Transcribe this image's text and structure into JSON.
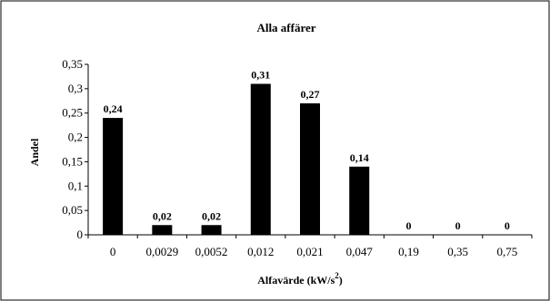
{
  "chart_data": {
    "type": "bar",
    "title": "Alla affärer",
    "xlabel": "Alfavärde (kW/s",
    "xlabel_superscript": "2",
    "xlabel_suffix": ")",
    "ylabel": "Andel",
    "ylim": [
      0,
      0.35
    ],
    "ytick_step": 0.05,
    "yticks": [
      "0",
      "0,05",
      "0,1",
      "0,15",
      "0,2",
      "0,25",
      "0,3",
      "0,35"
    ],
    "categories": [
      "0",
      "0,0029",
      "0,0052",
      "0,012",
      "0,021",
      "0,047",
      "0,19",
      "0,35",
      "0,75"
    ],
    "values": [
      0.24,
      0.02,
      0.02,
      0.31,
      0.27,
      0.14,
      0,
      0,
      0
    ],
    "data_labels": [
      "0,24",
      "0,02",
      "0,02",
      "0,31",
      "0,27",
      "0,14",
      "0",
      "0",
      "0"
    ],
    "grid": false,
    "legend": "none",
    "bar_color": "#000000",
    "border_color": "#000000"
  }
}
